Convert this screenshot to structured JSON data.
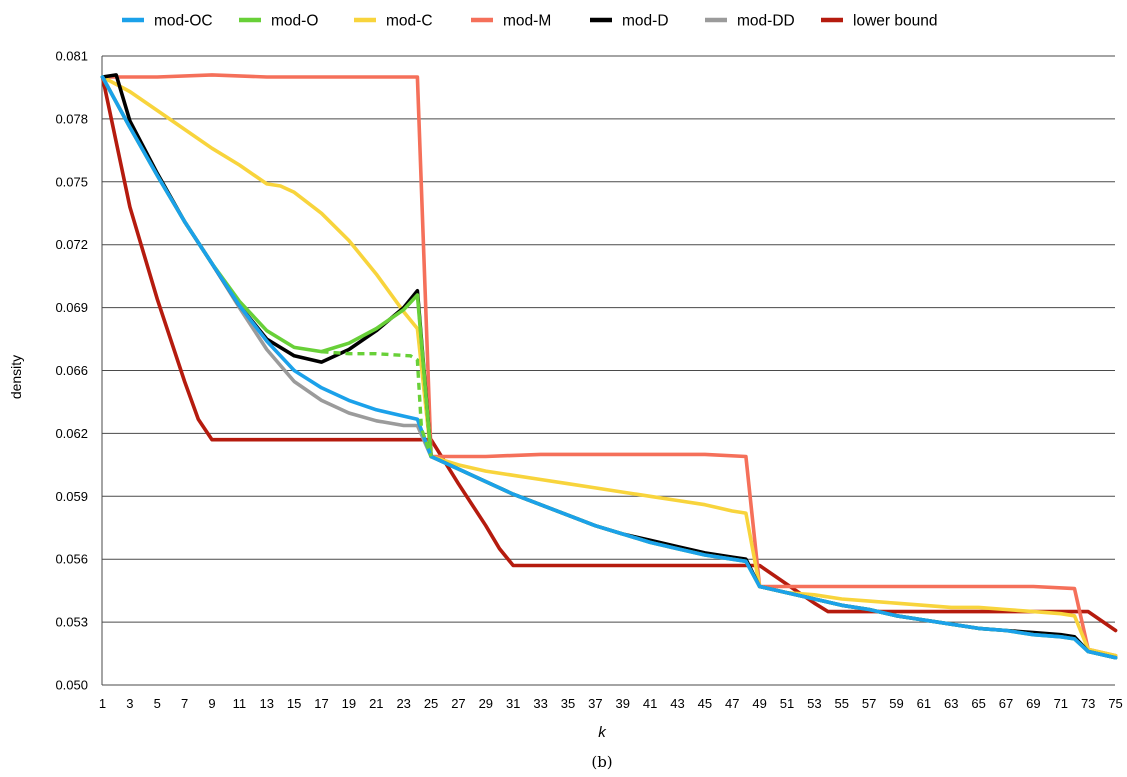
{
  "chart_data": {
    "type": "line",
    "title": "",
    "xlabel": "k",
    "ylabel": "density",
    "caption": "(b)",
    "x_range": [
      1,
      75
    ],
    "x_tick_labels": [
      "1",
      "3",
      "5",
      "7",
      "9",
      "11",
      "13",
      "15",
      "17",
      "19",
      "21",
      "23",
      "25",
      "27",
      "29",
      "31",
      "33",
      "35",
      "37",
      "39",
      "41",
      "43",
      "45",
      "47",
      "49",
      "51",
      "53",
      "55",
      "57",
      "59",
      "61",
      "63",
      "65",
      "67",
      "69",
      "71",
      "73",
      "75"
    ],
    "ylim": [
      0.05,
      0.081
    ],
    "y_ticks": [
      0.05,
      0.053,
      0.056,
      0.059,
      0.062,
      0.066,
      0.069,
      0.072,
      0.075,
      0.078,
      0.081
    ],
    "y_tick_labels": [
      "0.050",
      "0.053",
      "0.056",
      "0.059",
      "0.062",
      "0.066",
      "0.069",
      "0.072",
      "0.075",
      "0.078",
      "0.081"
    ],
    "grid": "horizontal",
    "legend_position": "top",
    "series": [
      {
        "name": "mod-OC",
        "color": "#1BA1EA",
        "points": [
          [
            1,
            0.08
          ],
          [
            3,
            0.0776
          ],
          [
            5,
            0.0753
          ],
          [
            7,
            0.0731
          ],
          [
            9,
            0.0711
          ],
          [
            11,
            0.0691
          ],
          [
            13,
            0.0674
          ],
          [
            15,
            0.066
          ],
          [
            17,
            0.0649
          ],
          [
            19,
            0.0641
          ],
          [
            21,
            0.0635
          ],
          [
            23,
            0.0631
          ],
          [
            24,
            0.0629
          ],
          [
            25,
            0.0609
          ],
          [
            27,
            0.0603
          ],
          [
            29,
            0.0597
          ],
          [
            31,
            0.0591
          ],
          [
            33,
            0.0586
          ],
          [
            35,
            0.0581
          ],
          [
            37,
            0.0576
          ],
          [
            39,
            0.0572
          ],
          [
            41,
            0.0568
          ],
          [
            43,
            0.0565
          ],
          [
            45,
            0.0562
          ],
          [
            47,
            0.056
          ],
          [
            48,
            0.0559
          ],
          [
            49,
            0.0547
          ],
          [
            51,
            0.0544
          ],
          [
            53,
            0.0541
          ],
          [
            55,
            0.0538
          ],
          [
            57,
            0.0536
          ],
          [
            59,
            0.0533
          ],
          [
            61,
            0.0531
          ],
          [
            63,
            0.0529
          ],
          [
            65,
            0.0527
          ],
          [
            67,
            0.0526
          ],
          [
            69,
            0.0524
          ],
          [
            71,
            0.0523
          ],
          [
            72,
            0.0522
          ],
          [
            73,
            0.0516
          ],
          [
            75,
            0.0513
          ]
        ]
      },
      {
        "name": "mod-O",
        "color": "#68D038",
        "points": [
          [
            1,
            0.08
          ],
          [
            3,
            0.0776
          ],
          [
            5,
            0.0753
          ],
          [
            7,
            0.0731
          ],
          [
            9,
            0.0711
          ],
          [
            11,
            0.0693
          ],
          [
            13,
            0.0679
          ],
          [
            15,
            0.0671
          ],
          [
            17,
            0.0669
          ],
          [
            19,
            0.0673
          ],
          [
            21,
            0.068
          ],
          [
            23,
            0.0689
          ],
          [
            24,
            0.0696
          ],
          [
            25,
            0.0609
          ],
          [
            27,
            0.0603
          ],
          [
            29,
            0.0597
          ],
          [
            31,
            0.0591
          ],
          [
            33,
            0.0586
          ],
          [
            35,
            0.0581
          ],
          [
            37,
            0.0576
          ],
          [
            39,
            0.0572
          ],
          [
            41,
            0.0568
          ],
          [
            43,
            0.0565
          ],
          [
            45,
            0.0562
          ],
          [
            47,
            0.056
          ],
          [
            48,
            0.0559
          ],
          [
            49,
            0.0547
          ],
          [
            51,
            0.0544
          ],
          [
            53,
            0.0541
          ],
          [
            55,
            0.0538
          ],
          [
            57,
            0.0536
          ],
          [
            59,
            0.0533
          ],
          [
            61,
            0.0531
          ],
          [
            63,
            0.0529
          ],
          [
            65,
            0.0527
          ],
          [
            67,
            0.0526
          ],
          [
            69,
            0.0524
          ],
          [
            71,
            0.0523
          ],
          [
            72,
            0.0522
          ],
          [
            73,
            0.0516
          ],
          [
            75,
            0.0513
          ]
        ]
      },
      {
        "name": "mod-C",
        "color": "#F8D43C",
        "points": [
          [
            1,
            0.08
          ],
          [
            3,
            0.0793
          ],
          [
            5,
            0.0784
          ],
          [
            7,
            0.0775
          ],
          [
            9,
            0.0766
          ],
          [
            11,
            0.0758
          ],
          [
            13,
            0.0749
          ],
          [
            14,
            0.0748
          ],
          [
            15,
            0.0745
          ],
          [
            17,
            0.0735
          ],
          [
            19,
            0.0722
          ],
          [
            21,
            0.0706
          ],
          [
            23,
            0.0688
          ],
          [
            24,
            0.068
          ],
          [
            25,
            0.0609
          ],
          [
            27,
            0.0605
          ],
          [
            29,
            0.0602
          ],
          [
            31,
            0.06
          ],
          [
            33,
            0.0598
          ],
          [
            35,
            0.0596
          ],
          [
            37,
            0.0594
          ],
          [
            39,
            0.0592
          ],
          [
            41,
            0.059
          ],
          [
            43,
            0.0588
          ],
          [
            45,
            0.0586
          ],
          [
            47,
            0.0583
          ],
          [
            48,
            0.0582
          ],
          [
            49,
            0.0547
          ],
          [
            51,
            0.0544
          ],
          [
            53,
            0.0543
          ],
          [
            55,
            0.0541
          ],
          [
            57,
            0.054
          ],
          [
            59,
            0.0539
          ],
          [
            61,
            0.0538
          ],
          [
            63,
            0.0537
          ],
          [
            65,
            0.0537
          ],
          [
            67,
            0.0536
          ],
          [
            69,
            0.0535
          ],
          [
            71,
            0.0534
          ],
          [
            72,
            0.0533
          ],
          [
            73,
            0.0517
          ],
          [
            75,
            0.0514
          ]
        ]
      },
      {
        "name": "mod-M",
        "color": "#F5705A",
        "points": [
          [
            1,
            0.08
          ],
          [
            5,
            0.08
          ],
          [
            9,
            0.0801
          ],
          [
            13,
            0.08
          ],
          [
            17,
            0.08
          ],
          [
            21,
            0.08
          ],
          [
            24,
            0.08
          ],
          [
            25,
            0.0609
          ],
          [
            29,
            0.0609
          ],
          [
            33,
            0.061
          ],
          [
            37,
            0.061
          ],
          [
            41,
            0.061
          ],
          [
            45,
            0.061
          ],
          [
            48,
            0.0609
          ],
          [
            49,
            0.0547
          ],
          [
            53,
            0.0547
          ],
          [
            57,
            0.0547
          ],
          [
            61,
            0.0547
          ],
          [
            65,
            0.0547
          ],
          [
            69,
            0.0547
          ],
          [
            72,
            0.0546
          ],
          [
            73,
            0.0517
          ],
          [
            75,
            0.0514
          ]
        ]
      },
      {
        "name": "mod-D",
        "color": "#000000",
        "points": [
          [
            1,
            0.08
          ],
          [
            2,
            0.0801
          ],
          [
            3,
            0.0779
          ],
          [
            5,
            0.0754
          ],
          [
            7,
            0.0731
          ],
          [
            9,
            0.0711
          ],
          [
            11,
            0.0691
          ],
          [
            13,
            0.0675
          ],
          [
            15,
            0.0667
          ],
          [
            17,
            0.0664
          ],
          [
            19,
            0.067
          ],
          [
            21,
            0.0679
          ],
          [
            23,
            0.069
          ],
          [
            24,
            0.0698
          ],
          [
            25,
            0.0609
          ],
          [
            27,
            0.0603
          ],
          [
            29,
            0.0597
          ],
          [
            31,
            0.0591
          ],
          [
            33,
            0.0586
          ],
          [
            35,
            0.0581
          ],
          [
            37,
            0.0576
          ],
          [
            39,
            0.0572
          ],
          [
            41,
            0.0569
          ],
          [
            43,
            0.0566
          ],
          [
            45,
            0.0563
          ],
          [
            47,
            0.0561
          ],
          [
            48,
            0.056
          ],
          [
            49,
            0.0547
          ],
          [
            51,
            0.0544
          ],
          [
            53,
            0.0541
          ],
          [
            55,
            0.0538
          ],
          [
            57,
            0.0536
          ],
          [
            59,
            0.0533
          ],
          [
            61,
            0.0531
          ],
          [
            63,
            0.0529
          ],
          [
            65,
            0.0527
          ],
          [
            67,
            0.0526
          ],
          [
            69,
            0.0525
          ],
          [
            71,
            0.0524
          ],
          [
            72,
            0.0523
          ],
          [
            73,
            0.0516
          ],
          [
            75,
            0.0513
          ]
        ]
      },
      {
        "name": "mod-DD",
        "color": "#9B9B9B",
        "points": [
          [
            1,
            0.08
          ],
          [
            3,
            0.0776
          ],
          [
            5,
            0.0753
          ],
          [
            7,
            0.0731
          ],
          [
            9,
            0.0711
          ],
          [
            11,
            0.069
          ],
          [
            13,
            0.067
          ],
          [
            15,
            0.0653
          ],
          [
            17,
            0.0641
          ],
          [
            19,
            0.0633
          ],
          [
            21,
            0.0628
          ],
          [
            23,
            0.0625
          ],
          [
            24,
            0.0625
          ],
          [
            25,
            0.0609
          ]
        ]
      },
      {
        "name": "lower bound",
        "color": "#B51B0E",
        "points": [
          [
            1,
            0.08
          ],
          [
            3,
            0.0738
          ],
          [
            5,
            0.0694
          ],
          [
            7,
            0.0653
          ],
          [
            8,
            0.0629
          ],
          [
            9,
            0.0617
          ],
          [
            25,
            0.0617
          ],
          [
            27,
            0.0596
          ],
          [
            29,
            0.0576
          ],
          [
            30,
            0.0565
          ],
          [
            31,
            0.0557
          ],
          [
            49,
            0.0557
          ],
          [
            51,
            0.0548
          ],
          [
            53,
            0.0539
          ],
          [
            54,
            0.0535
          ],
          [
            73,
            0.0535
          ],
          [
            75,
            0.0526
          ]
        ]
      }
    ]
  }
}
